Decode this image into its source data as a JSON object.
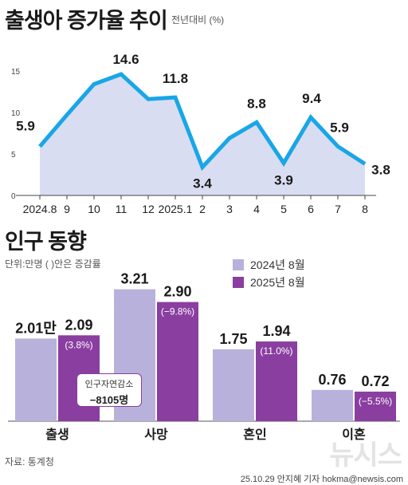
{
  "titles": {
    "birth": "출생아 증가율 추이",
    "birth_unit": "전년대비 (%)",
    "population": "인구 동향",
    "population_unit": "단위:만명 ( )안은  증감률"
  },
  "legend": {
    "prev": "2024년 8월",
    "curr": "2025년 8월"
  },
  "callout": {
    "line1": "인구자연감소",
    "line2": "−8105명"
  },
  "source": "자료: 통계청",
  "credit": "25.10.29 안지혜 기자 hokma@newsis.com",
  "watermark": "뉴시스",
  "colors": {
    "line": "#19a6e6",
    "area": "#d9ddf2",
    "bar_prev": "#b8b1dc",
    "bar_curr": "#8a3ea0"
  },
  "chart_data": [
    {
      "type": "line",
      "title": "출생아 증가율 추이",
      "ylabel": "전년대비 (%)",
      "categories": [
        "2024.8",
        "9",
        "10",
        "11",
        "12",
        "2025.1",
        "2",
        "3",
        "4",
        "5",
        "6",
        "7",
        "8"
      ],
      "values": [
        5.9,
        9.7,
        13.4,
        14.6,
        11.6,
        11.8,
        3.4,
        6.9,
        8.8,
        3.9,
        9.4,
        5.9,
        3.8
      ],
      "labels": [
        "5.9",
        "",
        "",
        "14.6",
        "",
        "11.8",
        "3.4",
        "",
        "8.8",
        "3.9",
        "9.4",
        "5.9",
        "3.8"
      ],
      "yticks": [
        "0",
        "5",
        "10",
        "15"
      ],
      "ylim": [
        0,
        17
      ],
      "grid": false
    },
    {
      "type": "bar",
      "title": "인구 동향",
      "categories": [
        "출생",
        "사망",
        "혼인",
        "이혼"
      ],
      "series": [
        {
          "name": "2024년 8월",
          "values": [
            2.01,
            3.21,
            1.75,
            0.76
          ],
          "labels": [
            "2.01만",
            "3.21",
            "1.75",
            "0.76"
          ],
          "changes": [
            "",
            "",
            "",
            ""
          ]
        },
        {
          "name": "2025년 8월",
          "values": [
            2.09,
            2.9,
            1.94,
            0.72
          ],
          "labels": [
            "2.09",
            "2.90",
            "1.94",
            "0.72"
          ],
          "changes": [
            "(3.8%)",
            "(−9.8%)",
            "(11.0%)",
            "(−5.5%)"
          ]
        }
      ],
      "ylim": [
        0,
        3.3
      ],
      "legend": "top-right"
    }
  ]
}
